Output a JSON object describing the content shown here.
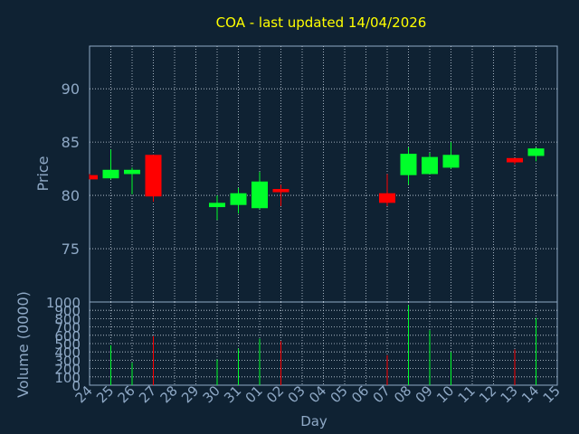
{
  "chart_data": {
    "type": "candlestick",
    "title": "COA - last updated 14/04/2026",
    "xlabel": "Day",
    "price_panel": {
      "ylabel": "Price",
      "ylim": [
        70,
        94
      ],
      "yticks": [
        75,
        80,
        85,
        90
      ],
      "grid": true
    },
    "volume_panel": {
      "ylabel": "Volume (0000)",
      "ylim": [
        0,
        1000
      ],
      "yticks": [
        0,
        100,
        200,
        300,
        400,
        500,
        600,
        700,
        800,
        900,
        1000
      ],
      "tick_labels": [
        "0",
        "100",
        "200",
        "300",
        "400",
        "500",
        "600",
        "700",
        "800",
        "900",
        "1000"
      ],
      "grid": true
    },
    "x_tick_labels": [
      "24",
      "25",
      "26",
      "27",
      "28",
      "29",
      "30",
      "31",
      "01",
      "02",
      "03",
      "04",
      "05",
      "06",
      "07",
      "08",
      "09",
      "10",
      "11",
      "12",
      "13",
      "14",
      "15"
    ],
    "candles": [
      {
        "x": "24",
        "open": 81.9,
        "high": 82.0,
        "low": 81.5,
        "close": 81.5,
        "volume": 0
      },
      {
        "x": "25",
        "open": 81.6,
        "high": 84.3,
        "low": 81.5,
        "close": 82.4,
        "volume": 480
      },
      {
        "x": "26",
        "open": 82.0,
        "high": 82.6,
        "low": 80.1,
        "close": 82.4,
        "volume": 270
      },
      {
        "x": "27",
        "open": 83.8,
        "high": 83.8,
        "low": 79.4,
        "close": 79.9,
        "volume": 590
      },
      {
        "x": "30",
        "open": 78.9,
        "high": 80.0,
        "low": 77.7,
        "close": 79.3,
        "volume": 310
      },
      {
        "x": "31",
        "open": 79.1,
        "high": 80.7,
        "low": 78.3,
        "close": 80.2,
        "volume": 440
      },
      {
        "x": "01",
        "open": 78.8,
        "high": 82.2,
        "low": 78.7,
        "close": 81.3,
        "volume": 560
      },
      {
        "x": "02",
        "open": 80.6,
        "high": 81.0,
        "low": 79.0,
        "close": 80.3,
        "volume": 530
      },
      {
        "x": "07",
        "open": 80.2,
        "high": 82.0,
        "low": 79.0,
        "close": 79.3,
        "volume": 360
      },
      {
        "x": "08",
        "open": 81.9,
        "high": 84.5,
        "low": 81.0,
        "close": 83.9,
        "volume": 960
      },
      {
        "x": "09",
        "open": 82.0,
        "high": 84.0,
        "low": 82.0,
        "close": 83.6,
        "volume": 660
      },
      {
        "x": "10",
        "open": 82.6,
        "high": 85.0,
        "low": 82.5,
        "close": 83.8,
        "volume": 400
      },
      {
        "x": "13",
        "open": 83.5,
        "high": 83.5,
        "low": 82.9,
        "close": 83.1,
        "volume": 430
      },
      {
        "x": "14",
        "open": 83.7,
        "high": 84.5,
        "low": 83.2,
        "close": 84.4,
        "volume": 810
      }
    ],
    "colors": {
      "up": "#00ff2a",
      "down": "#ff0000",
      "background": "#0f2233",
      "grid": "#c8d4e0",
      "axis": "#8fa9c6",
      "title": "#ffff00"
    }
  }
}
